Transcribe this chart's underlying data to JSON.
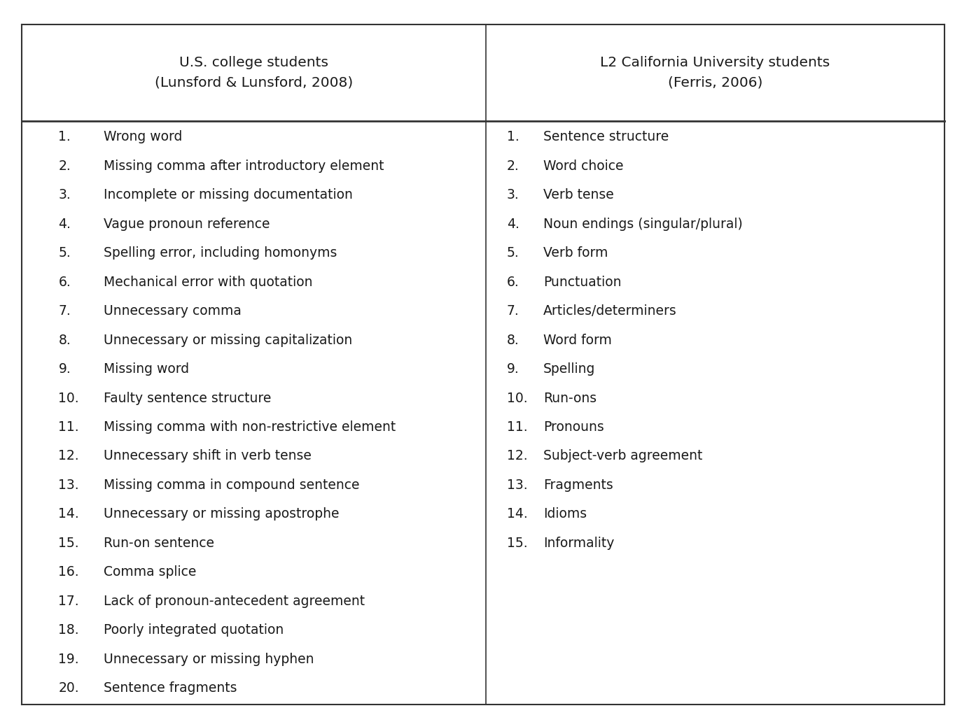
{
  "col1_header": "U.S. college students\n(Lunsford & Lunsford, 2008)",
  "col2_header": "L2 California University students\n(Ferris, 2006)",
  "col1_items": [
    "Wrong word",
    "Missing comma after introductory element",
    "Incomplete or missing documentation",
    "Vague pronoun reference",
    "Spelling error, including homonyms",
    "Mechanical error with quotation",
    "Unnecessary comma",
    "Unnecessary or missing capitalization",
    "Missing word",
    "Faulty sentence structure",
    "Missing comma with non-restrictive element",
    "Unnecessary shift in verb tense",
    "Missing comma in compound sentence",
    "Unnecessary or missing apostrophe",
    "Run-on sentence",
    "Comma splice",
    "Lack of pronoun-antecedent agreement",
    "Poorly integrated quotation",
    "Unnecessary or missing hyphen",
    "Sentence fragments"
  ],
  "col2_items": [
    "Sentence structure",
    "Word choice",
    "Verb tense",
    "Noun endings (singular/plural)",
    "Verb form",
    "Punctuation",
    "Articles/determiners",
    "Word form",
    "Spelling",
    "Run-ons",
    "Pronouns",
    "Subject-verb agreement",
    "Fragments",
    "Idioms",
    "Informality"
  ],
  "background_color": "#ffffff",
  "text_color": "#1a1a1a",
  "border_color": "#333333",
  "font_size": 13.5,
  "header_font_size": 14.5,
  "fig_width": 13.74,
  "fig_height": 10.32
}
